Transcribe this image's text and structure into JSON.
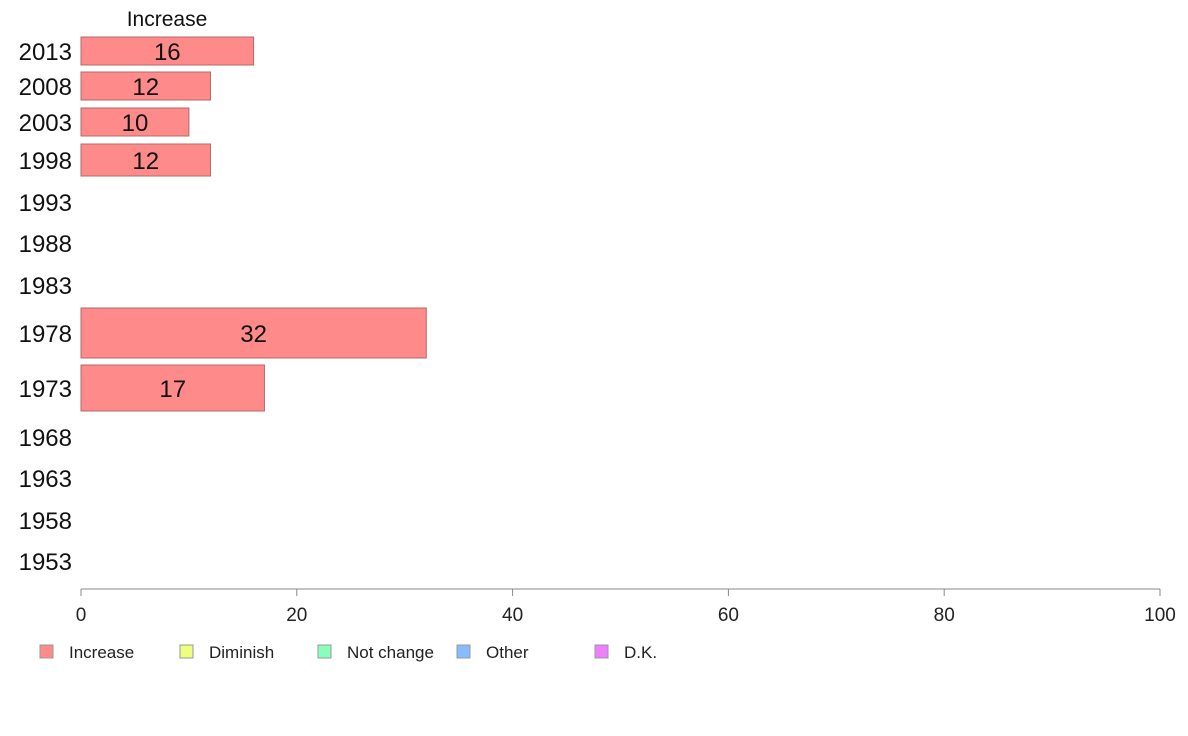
{
  "chart_data": {
    "type": "bar",
    "orientation": "horizontal",
    "categories": [
      "2013",
      "2008",
      "2003",
      "1998",
      "1993",
      "1988",
      "1983",
      "1978",
      "1973",
      "1968",
      "1963",
      "1958",
      "1953"
    ],
    "series": [
      {
        "name": "Increase",
        "values": [
          16,
          12,
          10,
          12,
          null,
          null,
          null,
          32,
          17,
          null,
          null,
          null,
          null
        ],
        "color": "#ff8a8a"
      }
    ],
    "data_labels": [
      "16",
      "12",
      "10",
      "12",
      "",
      "",
      "",
      "32",
      "17",
      "",
      "",
      "",
      ""
    ],
    "series_title": "Increase",
    "xlim": [
      0,
      100
    ],
    "xticks": [
      0,
      20,
      40,
      60,
      80,
      100
    ],
    "xtick_labels": [
      "0",
      "20",
      "40",
      "60",
      "80",
      "100"
    ],
    "grid": false,
    "legend": {
      "placement": "bottom-left",
      "entries": [
        {
          "label": "Increase",
          "color": "#ff8a8a"
        },
        {
          "label": "Diminish",
          "color": "#eeff80"
        },
        {
          "label": "Not change",
          "color": "#88ffbb"
        },
        {
          "label": "Other",
          "color": "#88bbff"
        },
        {
          "label": "D.K.",
          "color": "#ee80ff"
        }
      ]
    },
    "bar_color": "#ff8a8a",
    "bar_stroke": "#b06a6a",
    "axis_color": "#888888"
  }
}
